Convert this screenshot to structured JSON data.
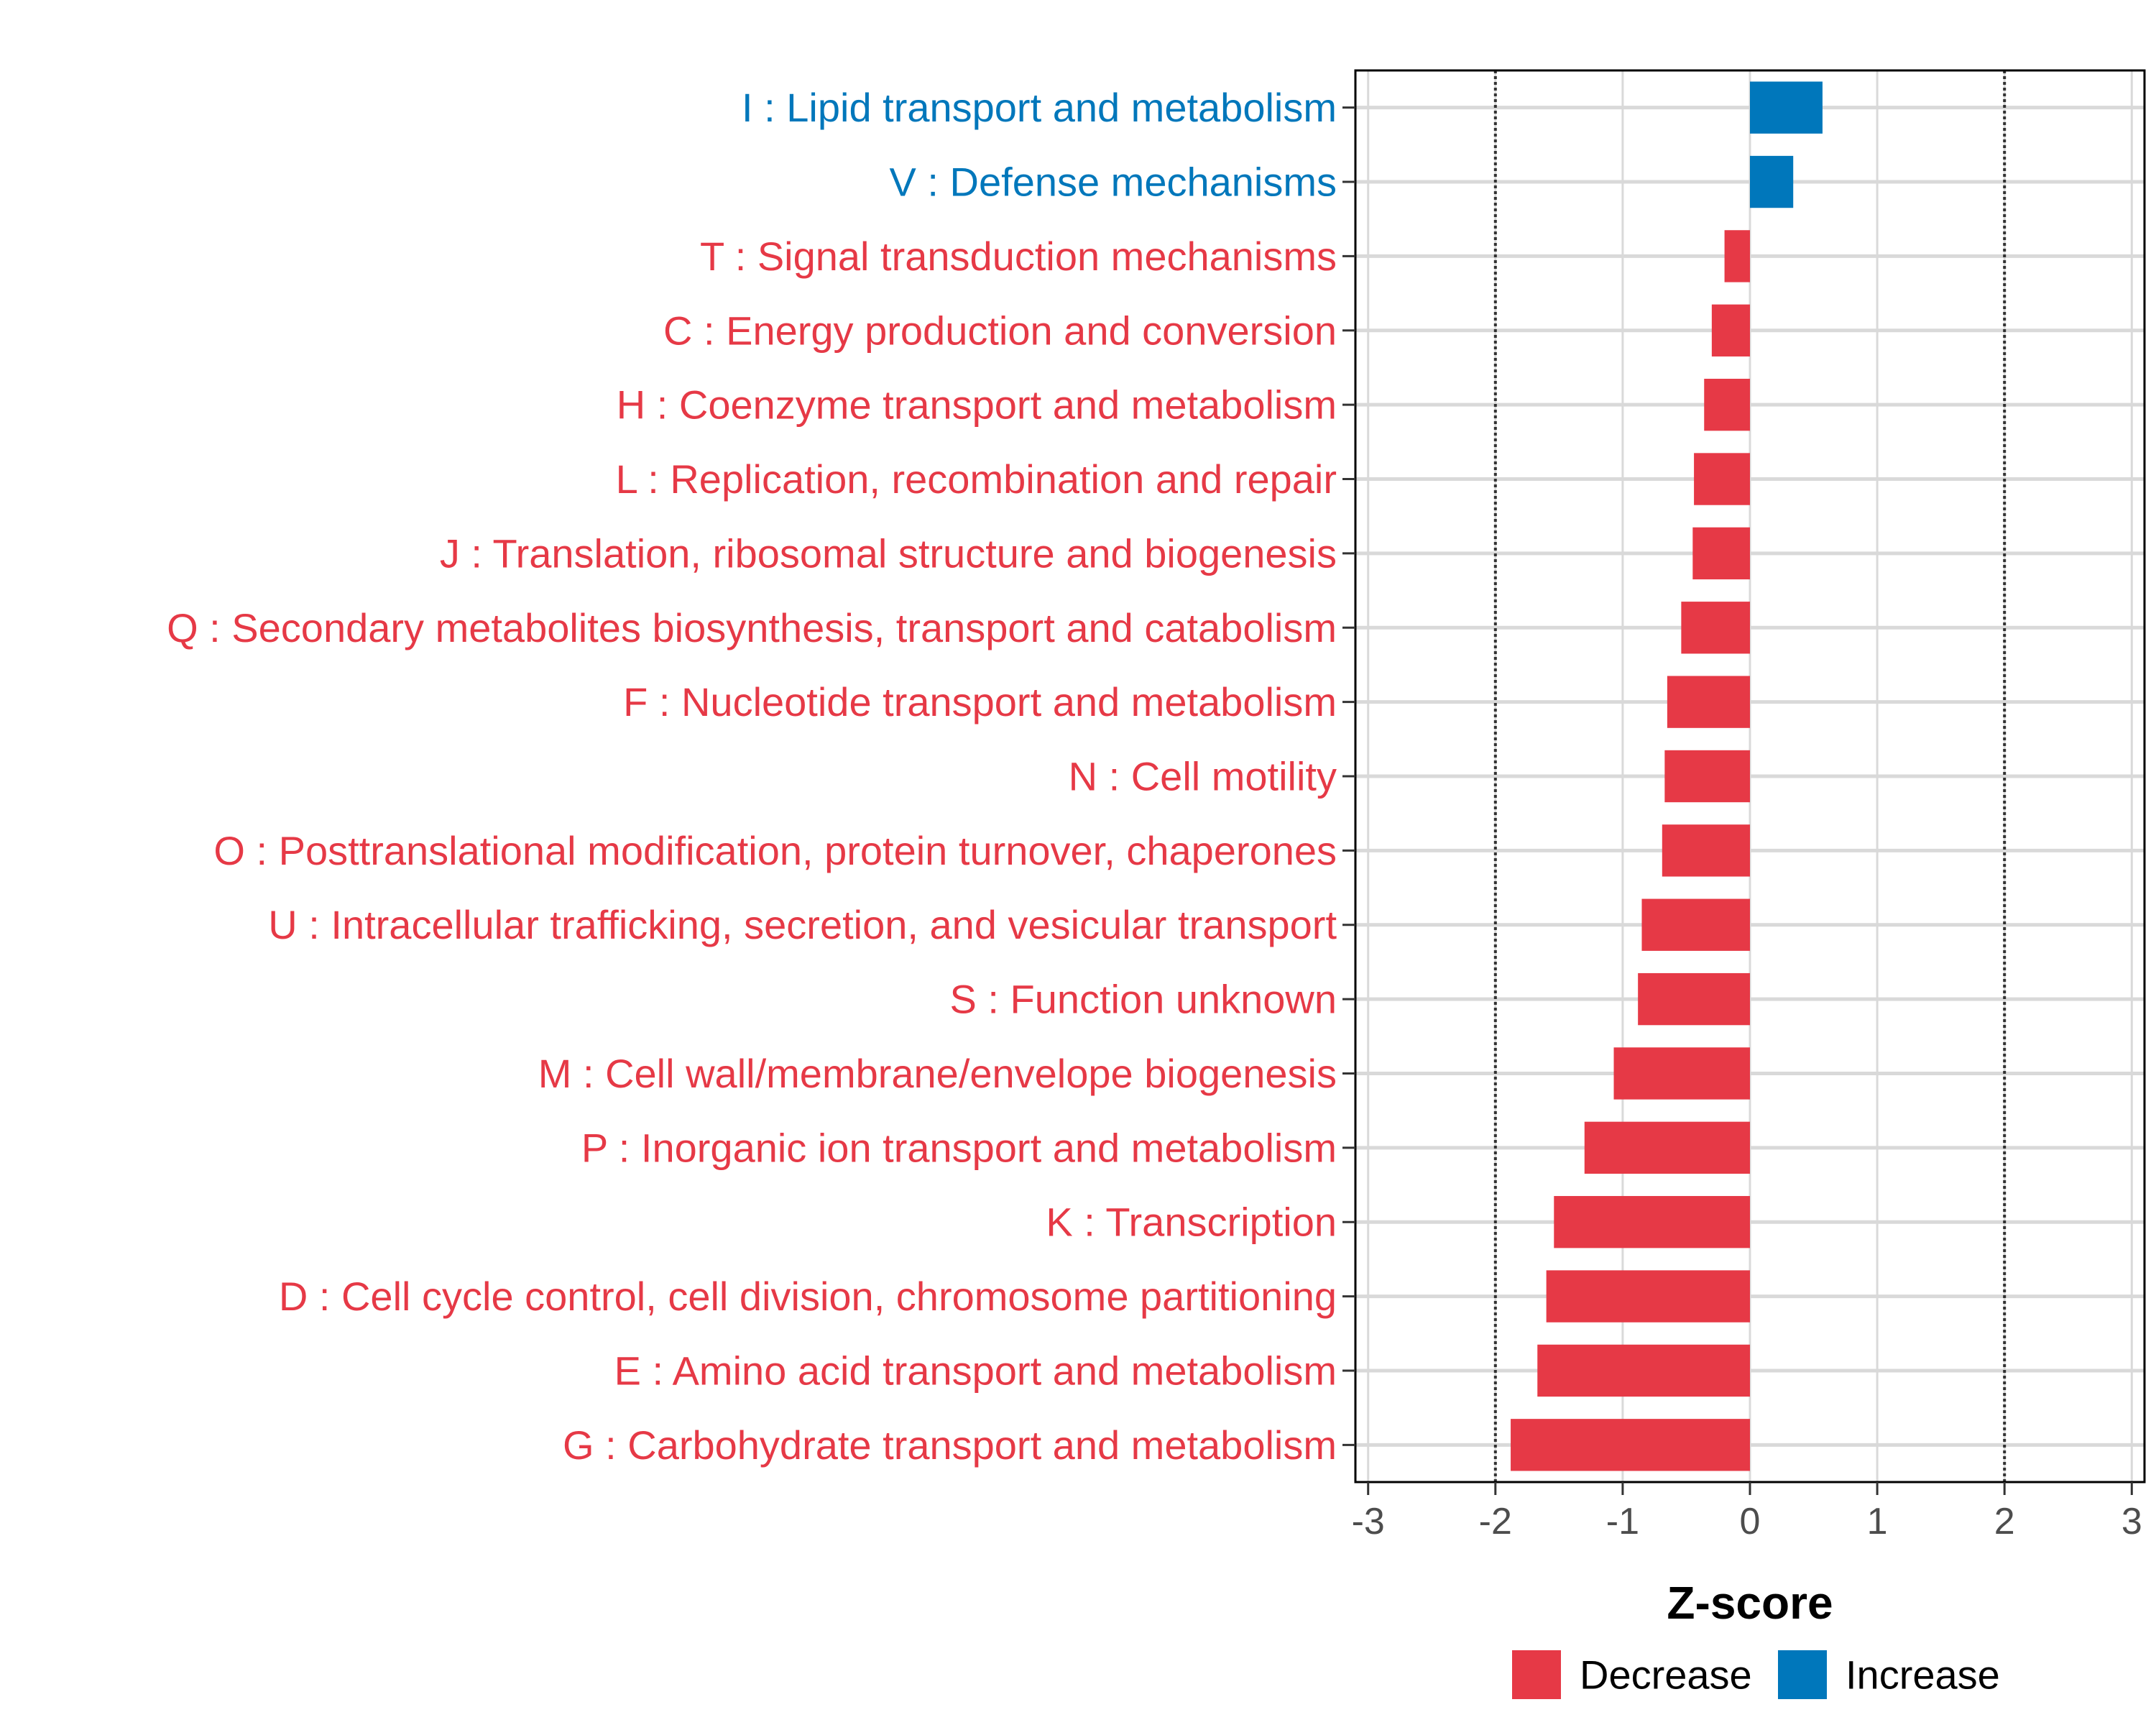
{
  "chart_data": {
    "type": "bar",
    "orientation": "horizontal",
    "xlabel": "Z-score",
    "xlim": [
      -3.1,
      3.1
    ],
    "xticks": [
      "-3",
      "-2",
      "-1",
      "0",
      "1",
      "2",
      "3"
    ],
    "reference_lines": [
      -2,
      2
    ],
    "grid": true,
    "categories": [
      "I : Lipid transport and metabolism",
      "V : Defense mechanisms",
      "T : Signal transduction mechanisms",
      "C : Energy production and conversion",
      "H : Coenzyme transport and metabolism",
      "L : Replication, recombination and repair",
      "J : Translation, ribosomal structure and biogenesis",
      "Q : Secondary metabolites biosynthesis, transport and catabolism",
      "F : Nucleotide transport and metabolism",
      "N : Cell motility",
      "O : Posttranslational modification, protein turnover, chaperones",
      "U : Intracellular trafficking, secretion, and vesicular transport",
      "S : Function unknown",
      "M : Cell wall/membrane/envelope biogenesis",
      "P : Inorganic ion transport and metabolism",
      "K : Transcription",
      "D : Cell cycle control, cell division, chromosome partitioning",
      "E : Amino acid transport and metabolism",
      "G : Carbohydrate transport and metabolism"
    ],
    "values": [
      0.57,
      0.34,
      -0.2,
      -0.3,
      -0.36,
      -0.44,
      -0.45,
      -0.54,
      -0.65,
      -0.67,
      -0.69,
      -0.85,
      -0.88,
      -1.07,
      -1.3,
      -1.54,
      -1.6,
      -1.67,
      -1.88
    ],
    "groups": [
      "Increase",
      "Increase",
      "Decrease",
      "Decrease",
      "Decrease",
      "Decrease",
      "Decrease",
      "Decrease",
      "Decrease",
      "Decrease",
      "Decrease",
      "Decrease",
      "Decrease",
      "Decrease",
      "Decrease",
      "Decrease",
      "Decrease",
      "Decrease",
      "Decrease"
    ],
    "legend": [
      {
        "name": "Decrease",
        "color": "#e63946"
      },
      {
        "name": "Increase",
        "color": "#0077bb"
      }
    ],
    "legend_position": "bottom"
  }
}
